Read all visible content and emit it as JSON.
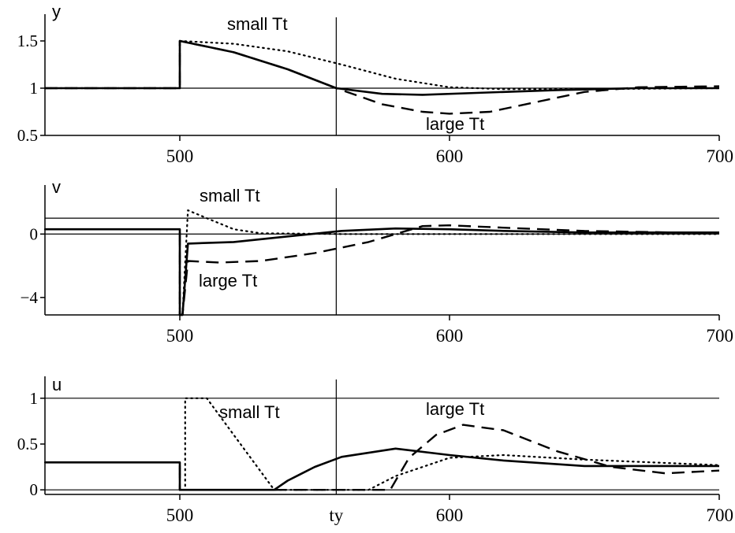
{
  "chart_data": [
    {
      "type": "line",
      "ylabel": "y",
      "xlim": [
        450,
        700
      ],
      "ylim": [
        0.5,
        1.6
      ],
      "x_ticks": [
        500,
        600,
        700
      ],
      "x_tick_labels": [
        "500",
        "600",
        "700"
      ],
      "y_ticks": [
        0.5,
        1,
        1.5
      ],
      "y_tick_labels": [
        "0.5",
        "1",
        "1.5"
      ],
      "reference_lines_y": [
        1
      ],
      "reference_line_x": 558,
      "annotations": [
        "small Tt",
        "large Tt"
      ],
      "series": [
        {
          "style": "solid",
          "points": [
            [
              450,
              1
            ],
            [
              500,
              1
            ],
            [
              500,
              1.5
            ],
            [
              520,
              1.38
            ],
            [
              540,
              1.2
            ],
            [
              558,
              1.0
            ],
            [
              575,
              0.94
            ],
            [
              590,
              0.93
            ],
            [
              610,
              0.95
            ],
            [
              640,
              0.98
            ],
            [
              670,
              1.0
            ],
            [
              700,
              1.0
            ]
          ]
        },
        {
          "style": "dotted",
          "points": [
            [
              450,
              1
            ],
            [
              500,
              1
            ],
            [
              500,
              1.5
            ],
            [
              520,
              1.47
            ],
            [
              540,
              1.39
            ],
            [
              560,
              1.25
            ],
            [
              580,
              1.1
            ],
            [
              600,
              1.01
            ],
            [
              620,
              0.99
            ],
            [
              650,
              0.99
            ],
            [
              700,
              1.0
            ]
          ]
        },
        {
          "style": "dashed",
          "points": [
            [
              450,
              1
            ],
            [
              500,
              1
            ],
            [
              500,
              1.5
            ],
            [
              520,
              1.38
            ],
            [
              540,
              1.2
            ],
            [
              558,
              1.0
            ],
            [
              575,
              0.83
            ],
            [
              590,
              0.75
            ],
            [
              600,
              0.73
            ],
            [
              615,
              0.75
            ],
            [
              630,
              0.84
            ],
            [
              650,
              0.96
            ],
            [
              670,
              1.01
            ],
            [
              700,
              1.02
            ]
          ]
        }
      ]
    },
    {
      "type": "line",
      "ylabel": "v",
      "xlim": [
        450,
        700
      ],
      "ylim": [
        -5.1,
        2
      ],
      "x_ticks": [
        500,
        600,
        700
      ],
      "x_tick_labels": [
        "500",
        "600",
        "700"
      ],
      "y_ticks": [
        0,
        -4
      ],
      "y_tick_labels": [
        "0",
        "−4"
      ],
      "reference_lines_y": [
        0,
        1
      ],
      "reference_line_x": 558,
      "annotations": [
        "small Tt",
        "large Tt"
      ],
      "series": [
        {
          "style": "solid",
          "points": [
            [
              450,
              0.3
            ],
            [
              500,
              0.3
            ],
            [
              500,
              -5.1
            ],
            [
              501,
              -5.1
            ],
            [
              503,
              -0.6
            ],
            [
              520,
              -0.5
            ],
            [
              540,
              -0.15
            ],
            [
              560,
              0.2
            ],
            [
              580,
              0.35
            ],
            [
              600,
              0.3
            ],
            [
              620,
              0.2
            ],
            [
              650,
              0.1
            ],
            [
              700,
              0.1
            ]
          ]
        },
        {
          "style": "dotted",
          "points": [
            [
              450,
              0.3
            ],
            [
              500,
              0.3
            ],
            [
              500,
              -5.1
            ],
            [
              501,
              -5.1
            ],
            [
              503,
              1.5
            ],
            [
              510,
              1.0
            ],
            [
              520,
              0.3
            ],
            [
              530,
              0.05
            ],
            [
              560,
              0.0
            ],
            [
              600,
              0.0
            ],
            [
              650,
              0.0
            ],
            [
              700,
              0.0
            ]
          ]
        },
        {
          "style": "dashed",
          "points": [
            [
              450,
              0.3
            ],
            [
              500,
              0.3
            ],
            [
              500,
              -5.1
            ],
            [
              501,
              -5.1
            ],
            [
              503,
              -1.7
            ],
            [
              515,
              -1.8
            ],
            [
              530,
              -1.7
            ],
            [
              550,
              -1.2
            ],
            [
              570,
              -0.5
            ],
            [
              590,
              0.5
            ],
            [
              600,
              0.55
            ],
            [
              620,
              0.4
            ],
            [
              650,
              0.2
            ],
            [
              700,
              0.05
            ]
          ]
        }
      ]
    },
    {
      "type": "line",
      "ylabel": "u",
      "xlim": [
        450,
        700
      ],
      "ylim": [
        -0.05,
        1.05
      ],
      "x_ticks": [
        500,
        600,
        700
      ],
      "x_tick_labels": [
        "500",
        "600",
        "700"
      ],
      "y_ticks": [
        0,
        0.5,
        1
      ],
      "y_tick_labels": [
        "0",
        "0.5",
        "1"
      ],
      "reference_lines_y": [
        0,
        1
      ],
      "reference_line_x": 558,
      "x_marker_label": "ty",
      "annotations": [
        "small Tt",
        "large Tt"
      ],
      "series": [
        {
          "style": "solid",
          "points": [
            [
              450,
              0.3
            ],
            [
              500,
              0.3
            ],
            [
              500,
              0
            ],
            [
              535,
              0
            ],
            [
              540,
              0.1
            ],
            [
              550,
              0.25
            ],
            [
              560,
              0.36
            ],
            [
              580,
              0.45
            ],
            [
              600,
              0.38
            ],
            [
              620,
              0.32
            ],
            [
              650,
              0.26
            ],
            [
              700,
              0.26
            ]
          ]
        },
        {
          "style": "dotted",
          "points": [
            [
              450,
              0.3
            ],
            [
              500,
              0.3
            ],
            [
              500,
              0
            ],
            [
              502,
              0
            ],
            [
              502,
              1.0
            ],
            [
              510,
              1.0
            ],
            [
              520,
              0.6
            ],
            [
              530,
              0.2
            ],
            [
              535,
              0
            ],
            [
              570,
              0
            ],
            [
              580,
              0.15
            ],
            [
              600,
              0.35
            ],
            [
              620,
              0.38
            ],
            [
              650,
              0.33
            ],
            [
              700,
              0.27
            ]
          ]
        },
        {
          "style": "dashed",
          "points": [
            [
              450,
              0.3
            ],
            [
              500,
              0.3
            ],
            [
              500,
              0
            ],
            [
              578,
              0
            ],
            [
              585,
              0.35
            ],
            [
              595,
              0.6
            ],
            [
              605,
              0.71
            ],
            [
              620,
              0.65
            ],
            [
              640,
              0.42
            ],
            [
              660,
              0.25
            ],
            [
              680,
              0.18
            ],
            [
              700,
              0.21
            ]
          ]
        }
      ]
    }
  ]
}
